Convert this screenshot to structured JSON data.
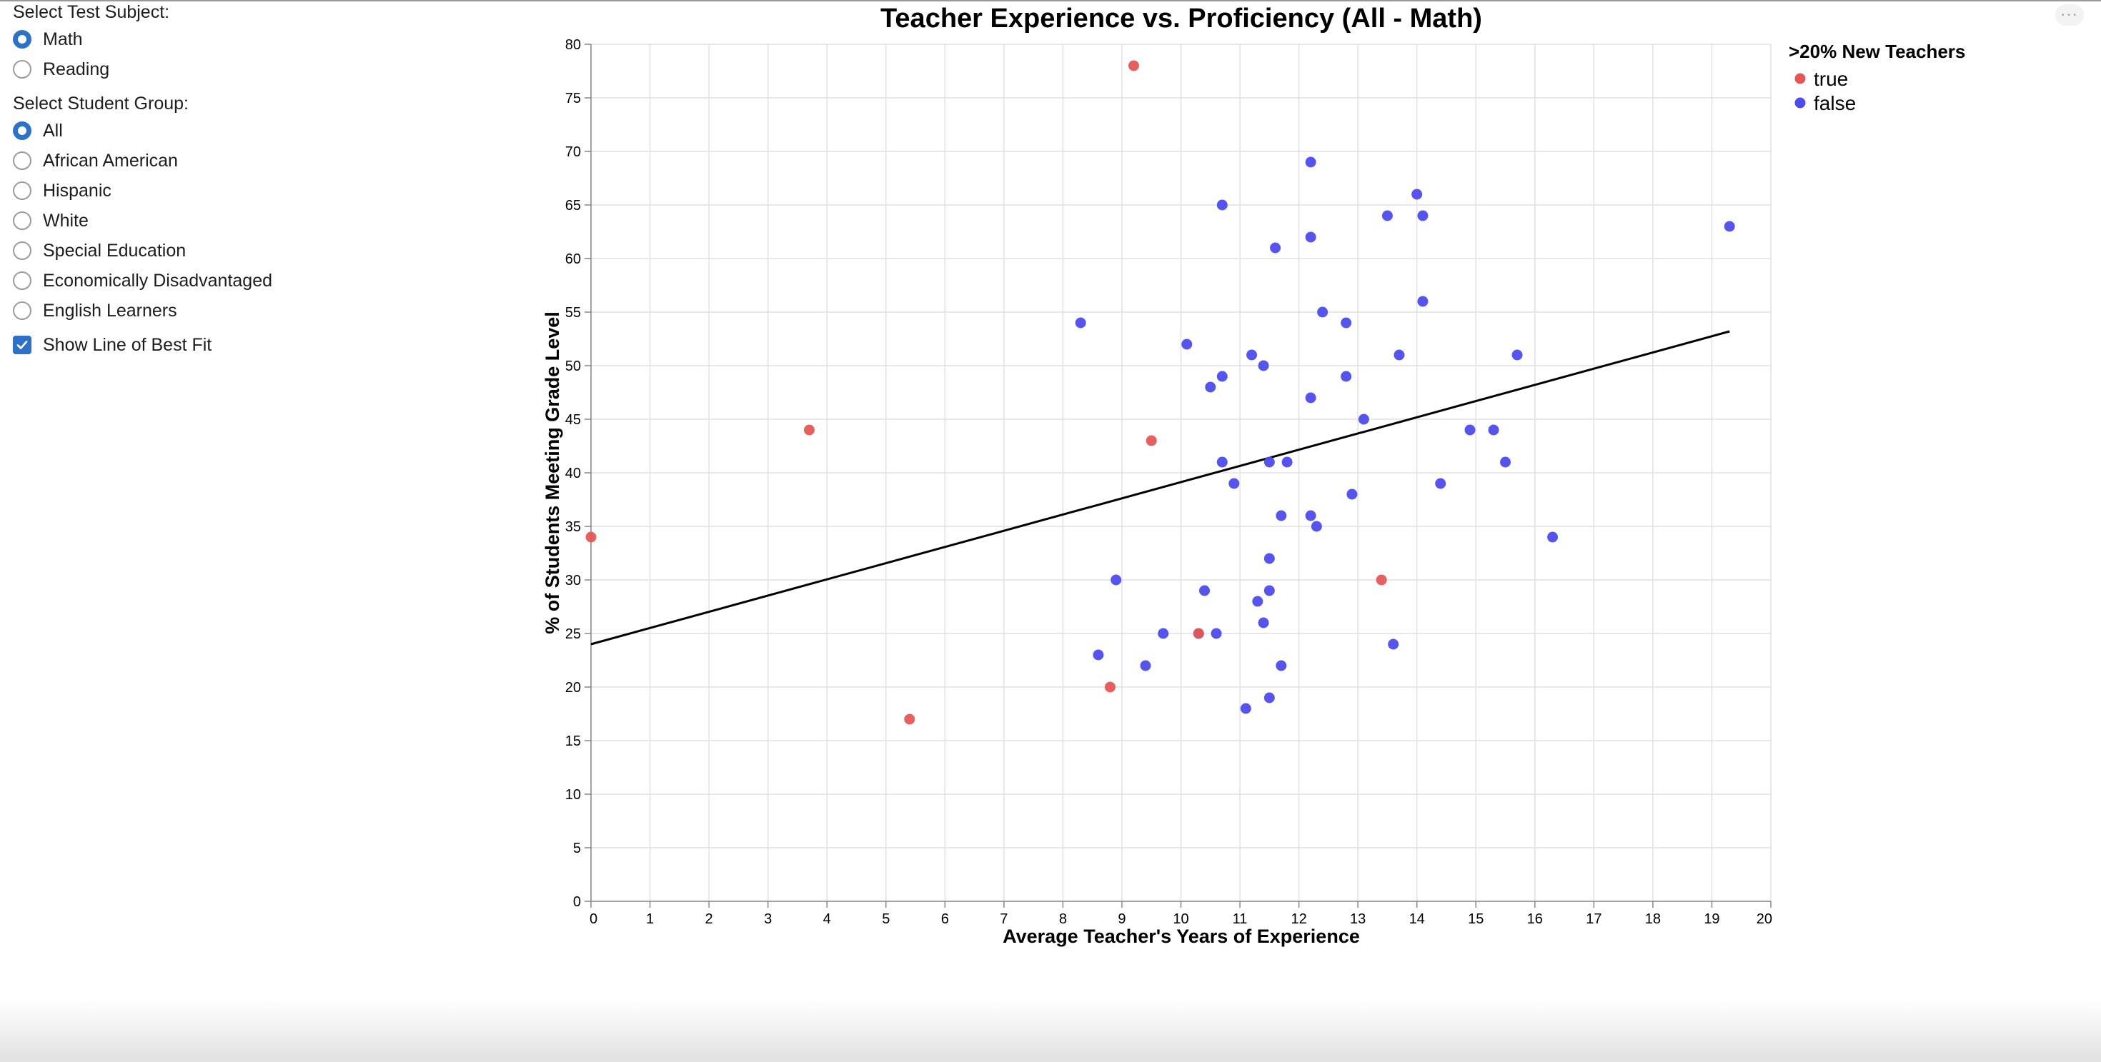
{
  "controls": {
    "subject_heading": "Select Test Subject:",
    "subjects": [
      {
        "label": "Math",
        "selected": true
      },
      {
        "label": "Reading",
        "selected": false
      }
    ],
    "group_heading": "Select Student Group:",
    "groups": [
      {
        "label": "All",
        "selected": true
      },
      {
        "label": "African American",
        "selected": false
      },
      {
        "label": "Hispanic",
        "selected": false
      },
      {
        "label": "White",
        "selected": false
      },
      {
        "label": "Special Education",
        "selected": false
      },
      {
        "label": "Economically Disadvantaged",
        "selected": false
      },
      {
        "label": "English Learners",
        "selected": false
      }
    ],
    "best_fit_label": "Show Line of Best Fit",
    "best_fit_checked": true
  },
  "menu": {
    "label": "···"
  },
  "colors": {
    "true": "#e45756",
    "false": "#4c4ced",
    "overlap": "#b03a4a",
    "accent": "#2e72c7",
    "grid": "#e1e1e1",
    "fit_line": "#000000"
  },
  "chart_data": {
    "type": "scatter",
    "title": "Teacher Experience vs. Proficiency (All - Math)",
    "xlabel": "Average Teacher's Years of Experience",
    "ylabel": "% of Students Meeting Grade Level",
    "xlim": [
      0,
      20
    ],
    "ylim": [
      0,
      80
    ],
    "xticks": [
      0,
      1,
      2,
      3,
      4,
      5,
      6,
      7,
      8,
      9,
      10,
      11,
      12,
      13,
      14,
      15,
      16,
      17,
      18,
      19,
      20
    ],
    "yticks": [
      0,
      5,
      10,
      15,
      20,
      25,
      30,
      35,
      40,
      45,
      50,
      55,
      60,
      65,
      70,
      75,
      80
    ],
    "grid": true,
    "legend": {
      "title": ">20% New Teachers",
      "position": "top-right",
      "entries": [
        "true",
        "false"
      ]
    },
    "series": [
      {
        "name": "true",
        "points": [
          {
            "x": 9.2,
            "y": 78
          },
          {
            "x": 3.7,
            "y": 44
          },
          {
            "x": 9.5,
            "y": 43
          },
          {
            "x": 0.0,
            "y": 34
          },
          {
            "x": 13.4,
            "y": 30
          },
          {
            "x": 10.3,
            "y": 25
          },
          {
            "x": 8.8,
            "y": 20
          },
          {
            "x": 5.4,
            "y": 17
          }
        ]
      },
      {
        "name": "false",
        "points": [
          {
            "x": 12.2,
            "y": 69
          },
          {
            "x": 14.0,
            "y": 66
          },
          {
            "x": 10.7,
            "y": 65
          },
          {
            "x": 13.5,
            "y": 64
          },
          {
            "x": 14.1,
            "y": 64
          },
          {
            "x": 19.3,
            "y": 63
          },
          {
            "x": 12.2,
            "y": 62
          },
          {
            "x": 11.6,
            "y": 61
          },
          {
            "x": 14.1,
            "y": 56
          },
          {
            "x": 12.4,
            "y": 55
          },
          {
            "x": 8.3,
            "y": 54
          },
          {
            "x": 12.8,
            "y": 54
          },
          {
            "x": 10.1,
            "y": 52
          },
          {
            "x": 11.2,
            "y": 51
          },
          {
            "x": 13.7,
            "y": 51
          },
          {
            "x": 15.7,
            "y": 51
          },
          {
            "x": 11.4,
            "y": 50
          },
          {
            "x": 10.7,
            "y": 49
          },
          {
            "x": 12.8,
            "y": 49
          },
          {
            "x": 10.5,
            "y": 48
          },
          {
            "x": 12.2,
            "y": 47
          },
          {
            "x": 13.1,
            "y": 45
          },
          {
            "x": 14.9,
            "y": 44
          },
          {
            "x": 15.3,
            "y": 44
          },
          {
            "x": 10.7,
            "y": 41
          },
          {
            "x": 11.5,
            "y": 41
          },
          {
            "x": 11.8,
            "y": 41
          },
          {
            "x": 15.5,
            "y": 41
          },
          {
            "x": 10.9,
            "y": 39
          },
          {
            "x": 14.4,
            "y": 39
          },
          {
            "x": 12.9,
            "y": 38
          },
          {
            "x": 11.7,
            "y": 36
          },
          {
            "x": 12.2,
            "y": 36
          },
          {
            "x": 12.3,
            "y": 35
          },
          {
            "x": 16.3,
            "y": 34
          },
          {
            "x": 11.5,
            "y": 32
          },
          {
            "x": 8.9,
            "y": 30
          },
          {
            "x": 10.4,
            "y": 29
          },
          {
            "x": 11.5,
            "y": 29
          },
          {
            "x": 11.3,
            "y": 28
          },
          {
            "x": 11.4,
            "y": 26
          },
          {
            "x": 9.7,
            "y": 25
          },
          {
            "x": 10.6,
            "y": 25
          },
          {
            "x": 10.3,
            "y": 25
          },
          {
            "x": 13.6,
            "y": 24
          },
          {
            "x": 8.6,
            "y": 23
          },
          {
            "x": 9.4,
            "y": 22
          },
          {
            "x": 11.7,
            "y": 22
          },
          {
            "x": 11.5,
            "y": 19
          },
          {
            "x": 11.1,
            "y": 18
          }
        ]
      }
    ],
    "best_fit_line": {
      "x1": 0,
      "y1": 24,
      "x2": 19.3,
      "y2": 53.2
    }
  }
}
